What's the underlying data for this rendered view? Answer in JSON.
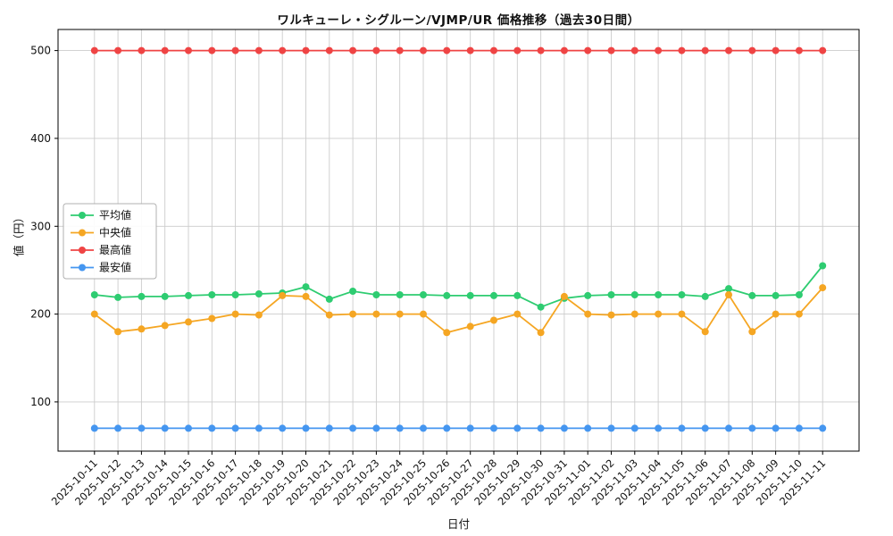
{
  "chart_data": {
    "type": "line",
    "title": "ワルキューレ・シグルーン/VJMP/UR 価格推移（過去30日間）",
    "xlabel": "日付",
    "ylabel": "値（円）",
    "grid": true,
    "legend_position": "center-left",
    "background": "#ffffff",
    "grid_color": "#cccccc",
    "yticks": [
      100,
      200,
      300,
      400,
      500
    ],
    "ylim": [
      44,
      524
    ],
    "xlim": [
      -1.55,
      32.55
    ],
    "x": [
      "2025-10-11",
      "2025-10-12",
      "2025-10-13",
      "2025-10-14",
      "2025-10-15",
      "2025-10-16",
      "2025-10-17",
      "2025-10-18",
      "2025-10-19",
      "2025-10-20",
      "2025-10-21",
      "2025-10-22",
      "2025-10-23",
      "2025-10-24",
      "2025-10-25",
      "2025-10-26",
      "2025-10-27",
      "2025-10-28",
      "2025-10-29",
      "2025-10-30",
      "2025-10-31",
      "2025-11-01",
      "2025-11-02",
      "2025-11-03",
      "2025-11-04",
      "2025-11-05",
      "2025-11-06",
      "2025-11-07",
      "2025-11-08",
      "2025-11-09",
      "2025-11-10",
      "2025-11-11"
    ],
    "series": [
      {
        "key": "average",
        "name": "平均値",
        "color": "#2ecc71",
        "values": [
          222,
          219,
          220,
          220,
          221,
          222,
          222,
          223,
          224,
          231,
          217,
          226,
          222,
          222,
          222,
          221,
          221,
          221,
          221,
          208,
          218,
          221,
          222,
          222,
          222,
          222,
          220,
          229,
          221,
          221,
          222,
          255
        ]
      },
      {
        "key": "median",
        "name": "中央値",
        "color": "#f5a623",
        "values": [
          200,
          180,
          183,
          187,
          191,
          195,
          200,
          199,
          221,
          220,
          199,
          200,
          200,
          200,
          200,
          179,
          186,
          193,
          200,
          179,
          220,
          200,
          199,
          200,
          200,
          200,
          180,
          222,
          180,
          200,
          200,
          230
        ]
      },
      {
        "key": "max",
        "name": "最高値",
        "color": "#ef4444",
        "values": [
          500,
          500,
          500,
          500,
          500,
          500,
          500,
          500,
          500,
          500,
          500,
          500,
          500,
          500,
          500,
          500,
          500,
          500,
          500,
          500,
          500,
          500,
          500,
          500,
          500,
          500,
          500,
          500,
          500,
          500,
          500,
          500
        ]
      },
      {
        "key": "min",
        "name": "最安値",
        "color": "#4596f0",
        "values": [
          70,
          70,
          70,
          70,
          70,
          70,
          70,
          70,
          70,
          70,
          70,
          70,
          70,
          70,
          70,
          70,
          70,
          70,
          70,
          70,
          70,
          70,
          70,
          70,
          70,
          70,
          70,
          70,
          70,
          70,
          70,
          70
        ]
      }
    ]
  }
}
